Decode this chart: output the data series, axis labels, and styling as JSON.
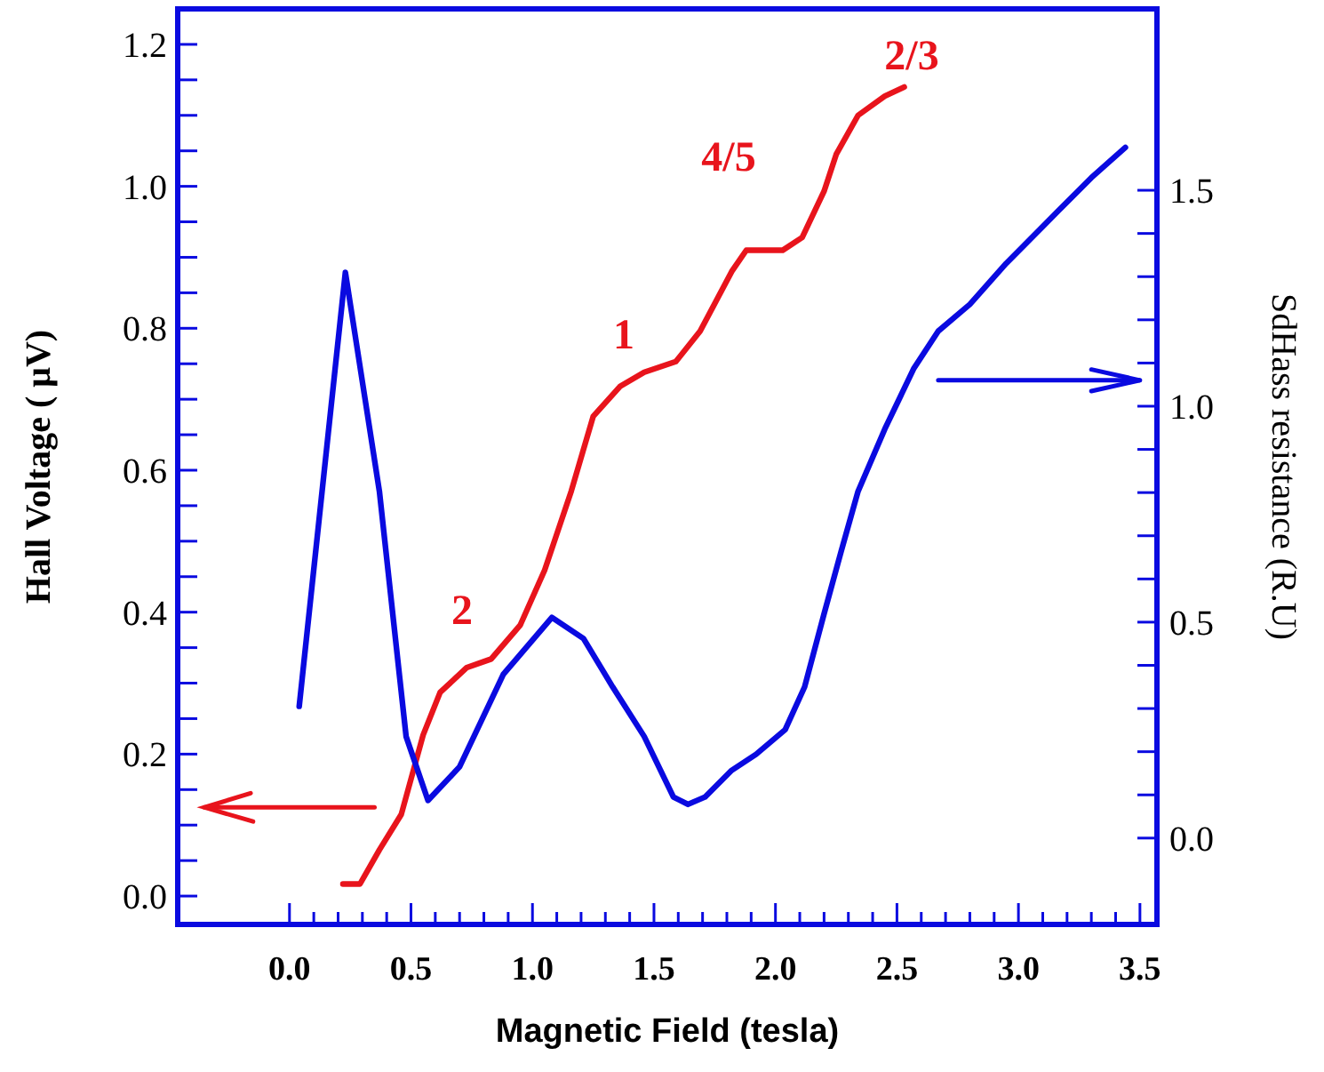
{
  "chart_data": {
    "type": "line",
    "xlabel": "Magnetic Field (tesla)",
    "ylabel": "Hall Voltage ( μV)",
    "y2label": "SdHass resistance (R.U)",
    "xlim": [
      -0.46,
      3.57
    ],
    "ylim": [
      -0.04,
      1.25
    ],
    "y2lim": [
      -0.2,
      1.92
    ],
    "xticks": [
      {
        "value": 0,
        "label": "0.0"
      },
      {
        "value": 0.1,
        "label": null
      },
      {
        "value": 0.2,
        "label": null
      },
      {
        "value": 0.3,
        "label": null
      },
      {
        "value": 0.4,
        "label": null
      },
      {
        "value": 0.5,
        "label": "0.5"
      },
      {
        "value": 0.6,
        "label": null
      },
      {
        "value": 0.7,
        "label": null
      },
      {
        "value": 0.8,
        "label": null
      },
      {
        "value": 0.9,
        "label": null
      },
      {
        "value": 1,
        "label": "1.0"
      },
      {
        "value": 1.1,
        "label": null
      },
      {
        "value": 1.2,
        "label": null
      },
      {
        "value": 1.3,
        "label": null
      },
      {
        "value": 1.4,
        "label": null
      },
      {
        "value": 1.5,
        "label": "1.5"
      },
      {
        "value": 1.6,
        "label": null
      },
      {
        "value": 1.7,
        "label": null
      },
      {
        "value": 1.8,
        "label": null
      },
      {
        "value": 1.9,
        "label": null
      },
      {
        "value": 2,
        "label": "2.0"
      },
      {
        "value": 2.1,
        "label": null
      },
      {
        "value": 2.2,
        "label": null
      },
      {
        "value": 2.3,
        "label": null
      },
      {
        "value": 2.4,
        "label": null
      },
      {
        "value": 2.5,
        "label": "2.5"
      },
      {
        "value": 2.6,
        "label": null
      },
      {
        "value": 2.7,
        "label": null
      },
      {
        "value": 2.8,
        "label": null
      },
      {
        "value": 2.9,
        "label": null
      },
      {
        "value": 3,
        "label": "3.0"
      },
      {
        "value": 3.1,
        "label": null
      },
      {
        "value": 3.2,
        "label": null
      },
      {
        "value": 3.3,
        "label": null
      },
      {
        "value": 3.4,
        "label": null
      },
      {
        "value": 3.5,
        "label": "3.5"
      }
    ],
    "yticks": [
      {
        "value": 0,
        "label": "0.0"
      },
      {
        "value": 0.05,
        "label": null
      },
      {
        "value": 0.1,
        "label": null
      },
      {
        "value": 0.15,
        "label": null
      },
      {
        "value": 0.2,
        "label": "0.2"
      },
      {
        "value": 0.25,
        "label": null
      },
      {
        "value": 0.3,
        "label": null
      },
      {
        "value": 0.35,
        "label": null
      },
      {
        "value": 0.4,
        "label": "0.4"
      },
      {
        "value": 0.45,
        "label": null
      },
      {
        "value": 0.5,
        "label": null
      },
      {
        "value": 0.55,
        "label": null
      },
      {
        "value": 0.6,
        "label": "0.6"
      },
      {
        "value": 0.65,
        "label": null
      },
      {
        "value": 0.7,
        "label": null
      },
      {
        "value": 0.75,
        "label": null
      },
      {
        "value": 0.8,
        "label": "0.8"
      },
      {
        "value": 0.85,
        "label": null
      },
      {
        "value": 0.9,
        "label": null
      },
      {
        "value": 0.95,
        "label": null
      },
      {
        "value": 1,
        "label": "1.0"
      },
      {
        "value": 1.05,
        "label": null
      },
      {
        "value": 1.1,
        "label": null
      },
      {
        "value": 1.15,
        "label": null
      },
      {
        "value": 1.2,
        "label": "1.2"
      }
    ],
    "y2ticks": [
      {
        "value": 0,
        "label": "0.0"
      },
      {
        "value": 0.1,
        "label": null
      },
      {
        "value": 0.2,
        "label": null
      },
      {
        "value": 0.3,
        "label": null
      },
      {
        "value": 0.4,
        "label": null
      },
      {
        "value": 0.5,
        "label": "0.5"
      },
      {
        "value": 0.6,
        "label": null
      },
      {
        "value": 0.7,
        "label": null
      },
      {
        "value": 0.8,
        "label": null
      },
      {
        "value": 0.9,
        "label": null
      },
      {
        "value": 1,
        "label": "1.0"
      },
      {
        "value": 1.1,
        "label": null
      },
      {
        "value": 1.2,
        "label": null
      },
      {
        "value": 1.3,
        "label": null
      },
      {
        "value": 1.4,
        "label": null
      },
      {
        "value": 1.5,
        "label": "1.5"
      }
    ],
    "grid": false,
    "series": [
      {
        "color": "#e8141c",
        "x": [
          0.22,
          0.29,
          0.37,
          0.46,
          0.55,
          0.62,
          0.73,
          0.83,
          0.95,
          1.05,
          1.16,
          1.25,
          1.36,
          1.46,
          1.59,
          1.69,
          1.82,
          1.88,
          2.03,
          2.11,
          2.2,
          2.25,
          2.34,
          2.45,
          2.53
        ],
        "values": [
          0.017,
          0.017,
          0.065,
          0.115,
          0.227,
          0.287,
          0.322,
          0.334,
          0.382,
          0.459,
          0.571,
          0.676,
          0.718,
          0.738,
          0.753,
          0.796,
          0.88,
          0.91,
          0.91,
          0.928,
          0.993,
          1.045,
          1.1,
          1.127,
          1.14
        ]
      },
      {
        "color": "#0a0ae0",
        "axis": "y2",
        "x": [
          0.04,
          0.23,
          0.37,
          0.48,
          0.57,
          0.7,
          0.88,
          1.08,
          1.21,
          1.33,
          1.46,
          1.58,
          1.64,
          1.71,
          1.82,
          1.92,
          2.04,
          2.12,
          2.2,
          2.27,
          2.34,
          2.45,
          2.57,
          2.67,
          2.8,
          2.95,
          3.16,
          3.3,
          3.44
        ],
        "values": [
          0.305,
          1.31,
          0.803,
          0.235,
          0.087,
          0.165,
          0.379,
          0.511,
          0.462,
          0.35,
          0.235,
          0.095,
          0.078,
          0.095,
          0.157,
          0.194,
          0.251,
          0.35,
          0.519,
          0.663,
          0.803,
          0.947,
          1.088,
          1.174,
          1.236,
          1.331,
          1.45,
          1.529,
          1.599
        ]
      }
    ],
    "annotations": [
      "2",
      "1",
      "4/5",
      "2/3"
    ]
  }
}
